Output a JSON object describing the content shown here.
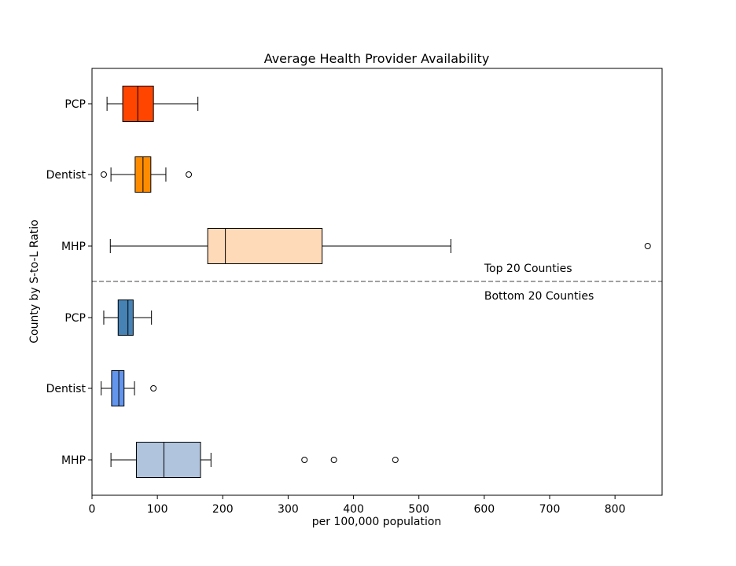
{
  "chart_data": {
    "type": "boxplot",
    "orientation": "horizontal",
    "title": "Average Health Provider Availability",
    "xlabel": "per 100,000 population",
    "ylabel": "County by S-to-L Ratio",
    "xlim": [
      0,
      872
    ],
    "x_ticks": [
      0,
      100,
      200,
      300,
      400,
      500,
      600,
      700,
      800
    ],
    "grid": false,
    "groups": [
      {
        "annotation": "Top 20 Counties",
        "boxes": [
          {
            "label": "PCP",
            "color": "#ff4500",
            "whisker_low": 23,
            "q1": 47,
            "median": 70,
            "q3": 94,
            "whisker_high": 162,
            "outliers": []
          },
          {
            "label": "Dentist",
            "color": "#ff8c00",
            "whisker_low": 29,
            "q1": 66,
            "median": 78,
            "q3": 90,
            "whisker_high": 113,
            "outliers": [
              18,
              148
            ]
          },
          {
            "label": "MHP",
            "color": "#ffdab9",
            "whisker_low": 28,
            "q1": 177,
            "median": 204,
            "q3": 352,
            "whisker_high": 549,
            "outliers": [
              850
            ]
          }
        ]
      },
      {
        "annotation": "Bottom 20 Counties",
        "boxes": [
          {
            "label": "PCP",
            "color": "#4682b4",
            "whisker_low": 18,
            "q1": 40,
            "median": 55,
            "q3": 63,
            "whisker_high": 91,
            "outliers": []
          },
          {
            "label": "Dentist",
            "color": "#6495ed",
            "whisker_low": 14,
            "q1": 30,
            "median": 41,
            "q3": 49,
            "whisker_high": 65,
            "outliers": [
              94
            ]
          },
          {
            "label": "MHP",
            "color": "#b0c4de",
            "whisker_low": 29,
            "q1": 68,
            "median": 110,
            "q3": 166,
            "whisker_high": 182,
            "outliers": [
              325,
              370,
              464
            ]
          }
        ]
      }
    ]
  }
}
